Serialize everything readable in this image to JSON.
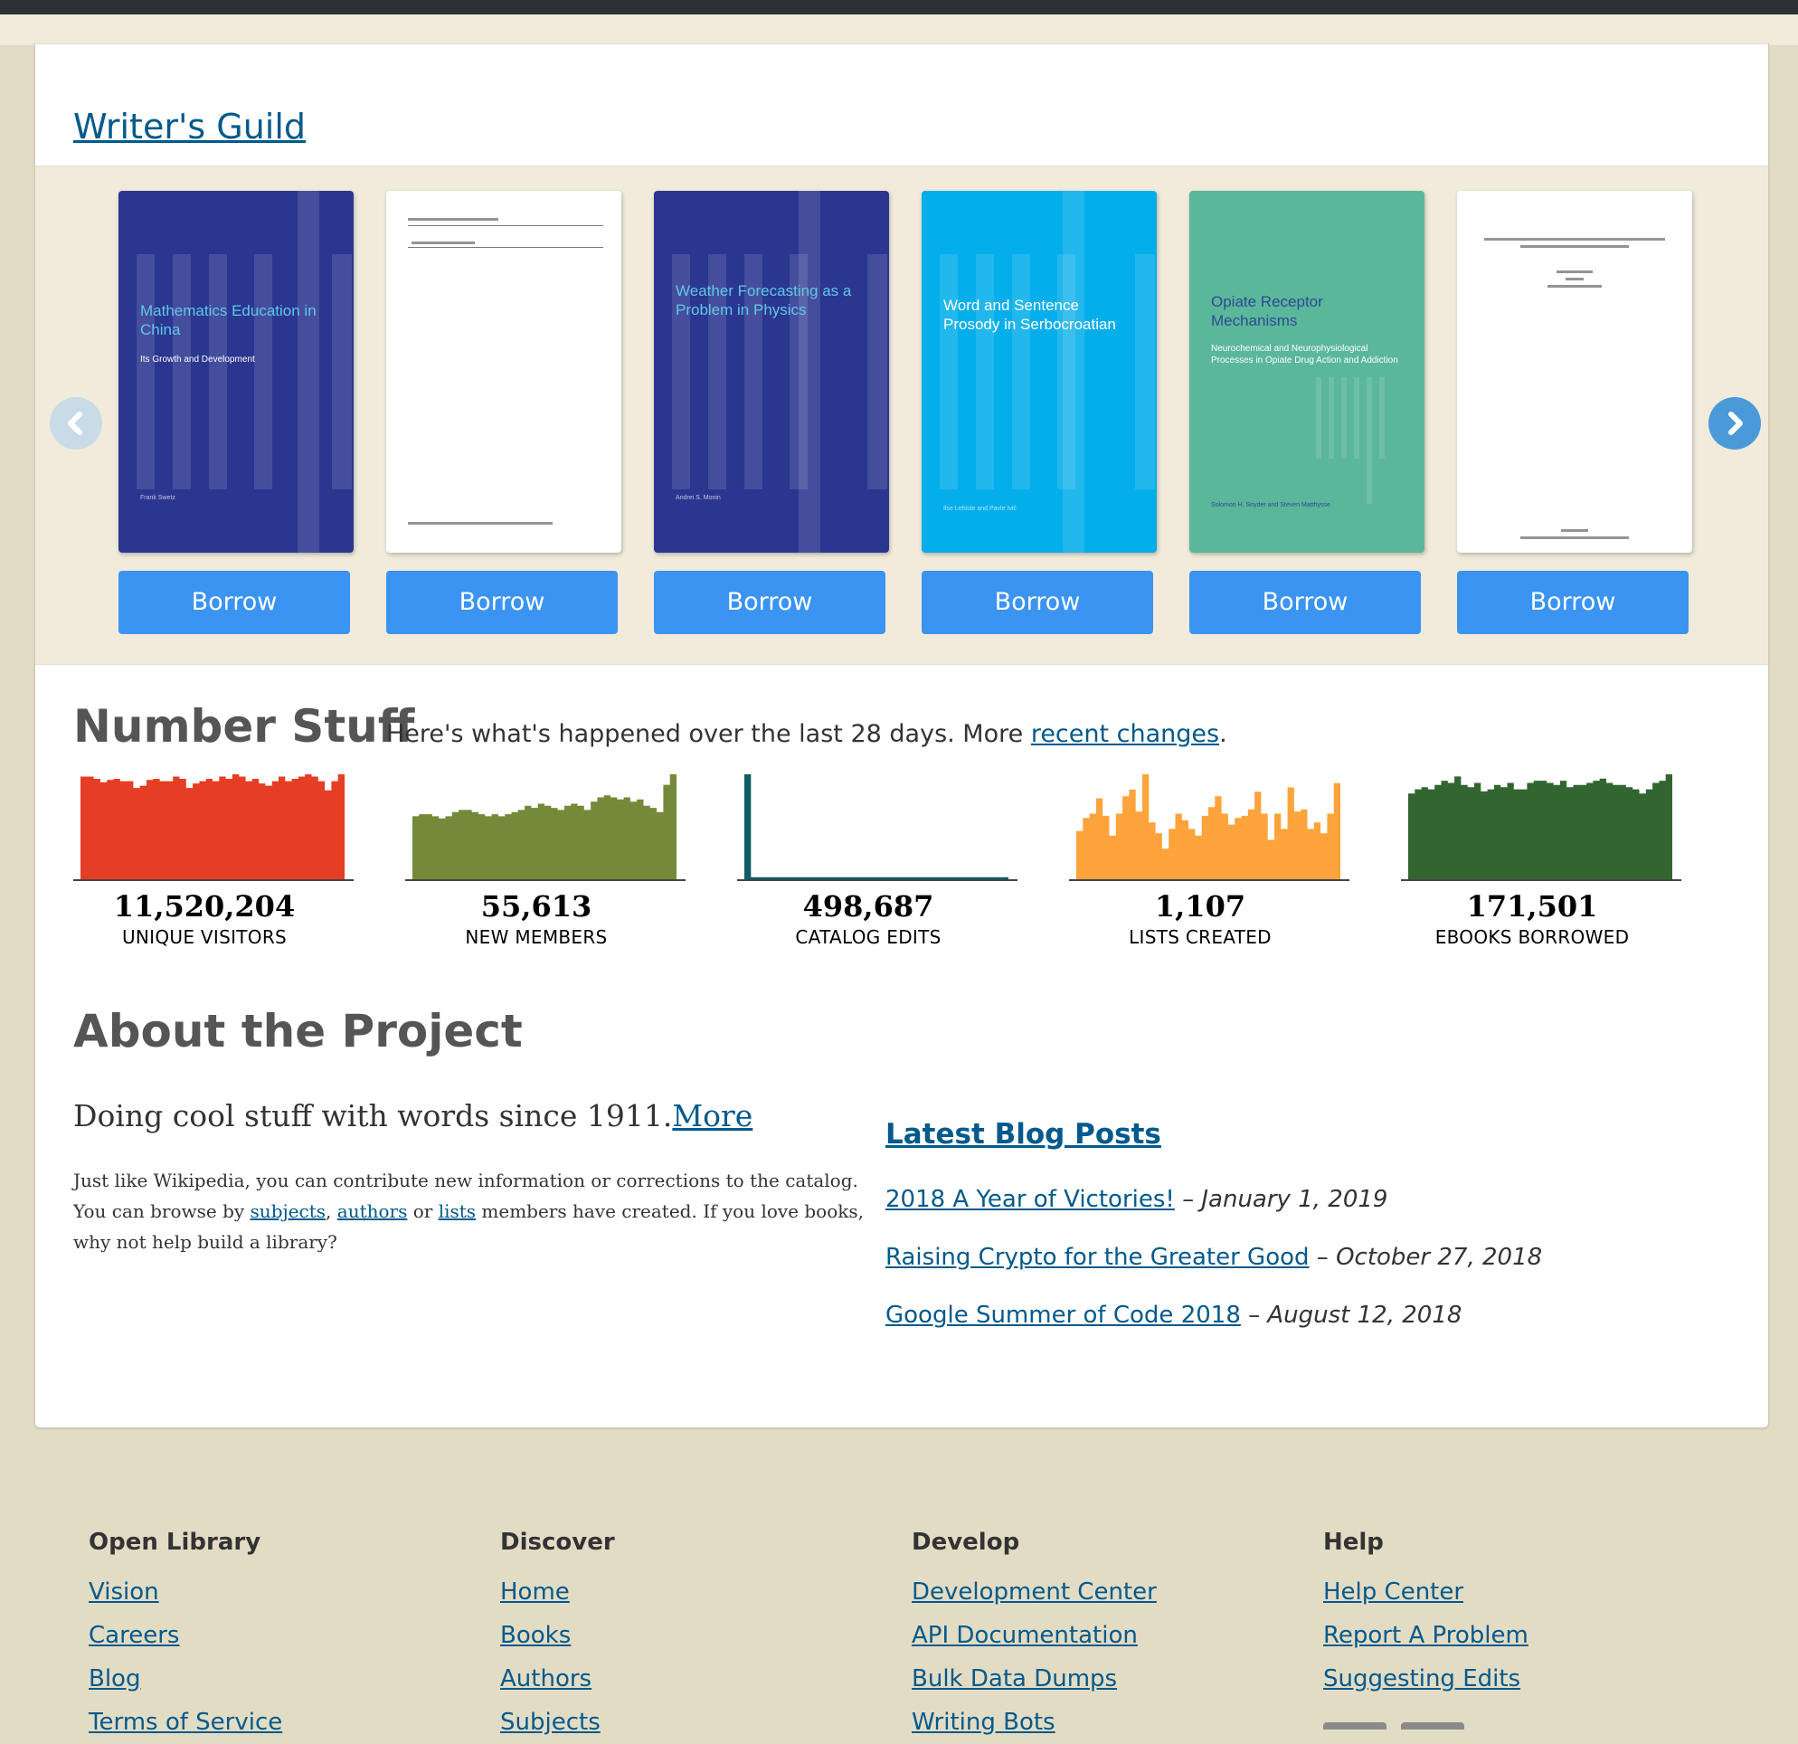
{
  "guild": {
    "title": "Writer's Guild"
  },
  "carousel": {
    "books": [
      {
        "title": "Mathematics Education in China",
        "subtitle": "Its Growth and Development",
        "author": "Frank Swetz",
        "color": "#2b3690",
        "button": "Borrow"
      },
      {
        "title": "",
        "subtitle": "",
        "author": "",
        "color": "#ffffff",
        "button": "Borrow"
      },
      {
        "title": "Weather Forecasting  as a Problem in Physics",
        "subtitle": "",
        "author": "Andrei S. Monin",
        "color": "#2b3690",
        "button": "Borrow"
      },
      {
        "title": "Word and Sentence Prosody in Serbocroatian",
        "subtitle": "",
        "author": "Ilse Lehiste and Pavle Ivić",
        "color": "#04aeeb",
        "button": "Borrow"
      },
      {
        "title": "Opiate Receptor Mechanisms",
        "subtitle": "Neurochemical and Neurophysiological Processes in Opiate Drug Action and Addiction",
        "author": "Solomon H. Snyder and Steven Matthysse",
        "color": "#5bb79a",
        "button": "Borrow"
      },
      {
        "title": "",
        "subtitle": "",
        "author": "",
        "color": "#ffffff",
        "button": "Borrow"
      }
    ]
  },
  "number_stuff": {
    "title": "Number Stuff",
    "desc_prefix": "Here's what's happened over the last 28 days. More ",
    "desc_link": "recent changes",
    "desc_suffix": ".",
    "stats": [
      {
        "value": "11,520,204",
        "label": "UNIQUE VISITORS",
        "color": "#e63e25",
        "series": [
          90,
          90,
          88,
          85,
          87,
          88,
          86,
          86,
          80,
          82,
          87,
          88,
          86,
          86,
          90,
          88,
          80,
          84,
          86,
          88,
          86,
          90,
          88,
          92,
          90,
          86,
          88,
          84,
          82,
          86,
          90,
          86,
          88,
          90,
          92,
          90,
          86,
          78,
          86,
          92
        ]
      },
      {
        "value": "55,613",
        "label": "NEW MEMBERS",
        "color": "#748a3a",
        "series": [
          60,
          62,
          62,
          60,
          58,
          60,
          64,
          66,
          66,
          64,
          62,
          60,
          62,
          60,
          62,
          64,
          66,
          70,
          68,
          72,
          70,
          68,
          66,
          70,
          72,
          70,
          66,
          74,
          78,
          80,
          78,
          76,
          78,
          74,
          76,
          70,
          68,
          64,
          90,
          100
        ]
      },
      {
        "value": "498,687",
        "label": "CATALOG EDITS",
        "color": "#0d5d66",
        "series": [
          100,
          2,
          2,
          2,
          2,
          2,
          2,
          2,
          2,
          2,
          2,
          2,
          2,
          2,
          2,
          2,
          2,
          2,
          2,
          2,
          2,
          2,
          2,
          2,
          2,
          2,
          2,
          2,
          2,
          2,
          2,
          2,
          2,
          2,
          2,
          2,
          2,
          2,
          2,
          2
        ]
      },
      {
        "value": "1,107",
        "label": "LISTS CREATED",
        "color": "#ffa33c",
        "series": [
          44,
          56,
          60,
          74,
          58,
          40,
          60,
          76,
          82,
          62,
          96,
          52,
          42,
          28,
          46,
          60,
          54,
          46,
          40,
          58,
          66,
          76,
          60,
          50,
          56,
          58,
          64,
          80,
          60,
          36,
          60,
          46,
          84,
          62,
          64,
          46,
          52,
          42,
          60,
          88
        ]
      },
      {
        "value": "171,501",
        "label": "EBOOKS BORROWED",
        "color": "#336531",
        "series": [
          80,
          84,
          86,
          84,
          88,
          92,
          90,
          96,
          88,
          86,
          90,
          82,
          84,
          88,
          86,
          90,
          84,
          84,
          90,
          92,
          92,
          90,
          88,
          92,
          86,
          88,
          88,
          90,
          92,
          94,
          90,
          88,
          88,
          86,
          84,
          80,
          84,
          90,
          92,
          98
        ]
      }
    ]
  },
  "about": {
    "title": "About the Project",
    "lead": "Doing cool stuff with words since 1911.",
    "lead_link": "More",
    "t1": "Just like Wikipedia, you can contribute new information or corrections to the catalog. You can browse by ",
    "link_subjects": "subjects",
    "t2": ", ",
    "link_authors": "authors",
    "t3": " or ",
    "link_lists": "lists",
    "t4": " members have created. If you love books, why not help build a library?"
  },
  "blog": {
    "title": "Latest Blog Posts",
    "posts": [
      {
        "title": "2018 A Year of Victories!",
        "sep": "–",
        "date": "January 1, 2019"
      },
      {
        "title": "Raising Crypto for the Greater Good",
        "sep": "–",
        "date": "October 27, 2018"
      },
      {
        "title": "Google Summer of Code 2018",
        "sep": "–",
        "date": "August 12, 2018"
      }
    ]
  },
  "footer": {
    "columns": [
      {
        "heading": "Open Library",
        "links": [
          "Vision",
          "Careers",
          "Blog",
          "Terms of Service"
        ]
      },
      {
        "heading": "Discover",
        "links": [
          "Home",
          "Books",
          "Authors",
          "Subjects"
        ]
      },
      {
        "heading": "Develop",
        "links": [
          "Development Center",
          "API Documentation",
          "Bulk Data Dumps",
          "Writing Bots"
        ]
      },
      {
        "heading": "Help",
        "links": [
          "Help Center",
          "Report A Problem",
          "Suggesting Edits"
        ]
      }
    ]
  }
}
